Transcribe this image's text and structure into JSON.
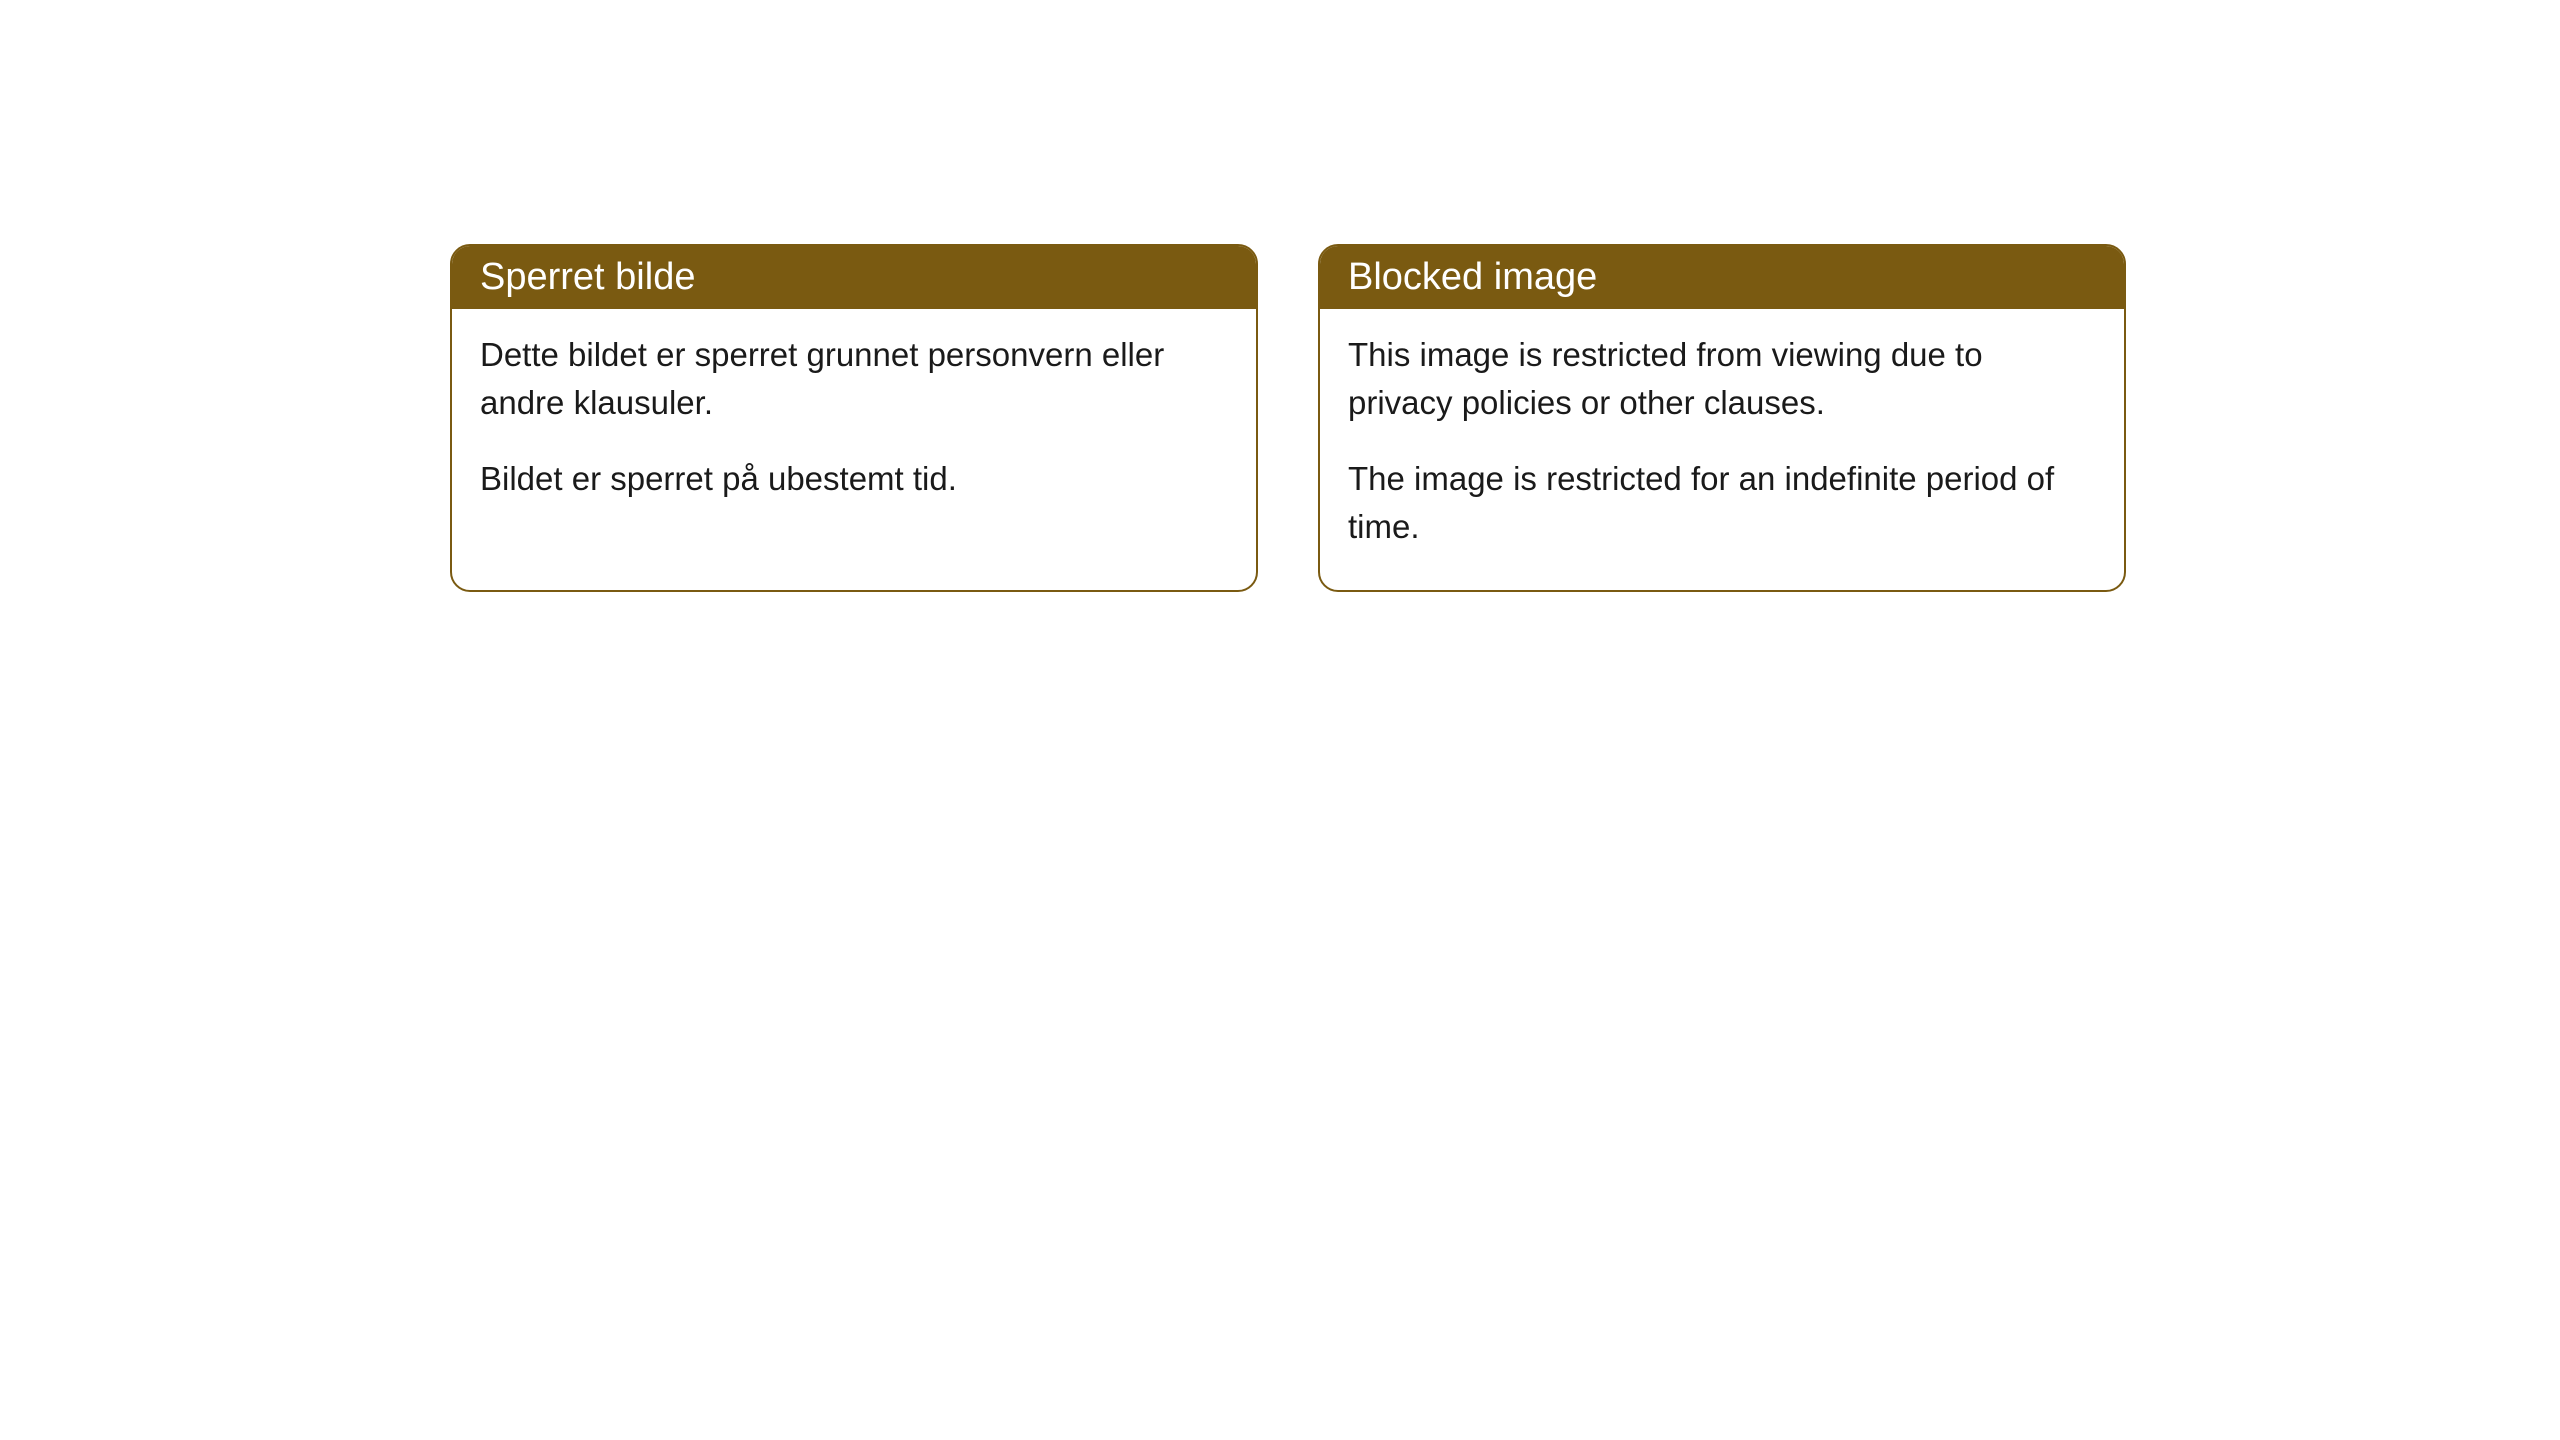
{
  "cards": [
    {
      "title": "Sperret bilde",
      "paragraph1": "Dette bildet er sperret grunnet personvern eller andre klausuler.",
      "paragraph2": "Bildet er sperret på ubestemt tid."
    },
    {
      "title": "Blocked image",
      "paragraph1": "This image is restricted from viewing due to privacy policies or other clauses.",
      "paragraph2": "The image is restricted for an indefinite period of time."
    }
  ],
  "style": {
    "header_bg": "#7a5a11",
    "header_text": "#ffffff",
    "border_color": "#7a5a11",
    "body_text": "#1a1a1a",
    "body_bg": "#ffffff",
    "border_radius": 20,
    "title_fontsize": 38,
    "body_fontsize": 33
  }
}
